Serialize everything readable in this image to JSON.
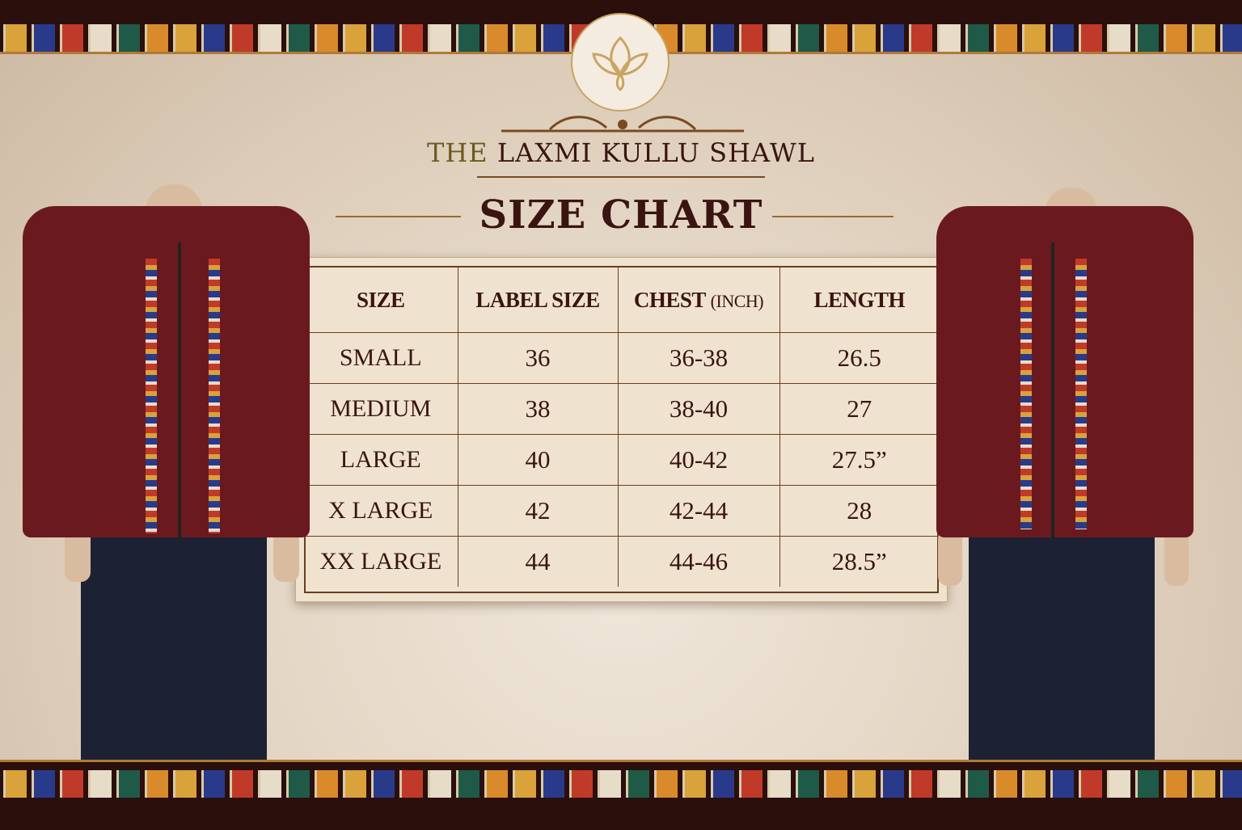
{
  "brand": {
    "prefix": "THE",
    "name": "LAXMI KULLU SHAWL",
    "logo": "lotus-logo"
  },
  "title": "SIZE CHART",
  "table": {
    "headers": [
      "SIZE",
      "LABEL SIZE",
      "CHEST",
      "(INCH)",
      "LENGTH"
    ],
    "rows": [
      {
        "size": "SMALL",
        "label": "36",
        "chest": "36-38",
        "length": "26.5"
      },
      {
        "size": "MEDIUM",
        "label": "38",
        "chest": "38-40",
        "length": "27"
      },
      {
        "size": "LARGE",
        "label": "40",
        "chest": "40-42",
        "length": "27.5”"
      },
      {
        "size": "X LARGE",
        "label": "42",
        "chest": "42-44",
        "length": "28"
      },
      {
        "size": "XX LARGE",
        "label": "44",
        "chest": "44-46",
        "length": "28.5”"
      }
    ]
  },
  "colors": {
    "jacket": "#6a1a1e",
    "text": "#3a1410",
    "accent": "#b07a3a",
    "background": "#e8dccb"
  }
}
